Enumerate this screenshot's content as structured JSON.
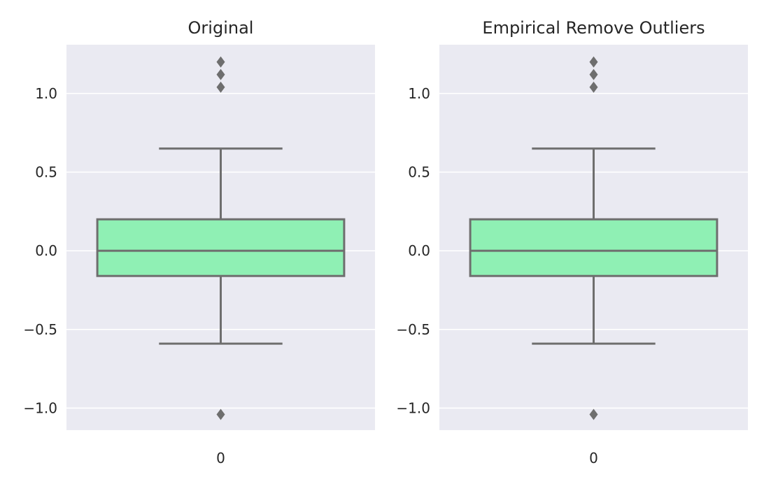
{
  "chart_data": [
    {
      "type": "box",
      "title": "Original",
      "categories": [
        "0"
      ],
      "ylim": [
        -1.14,
        1.31
      ],
      "yticks": [
        1.0,
        0.5,
        0.0,
        -0.5,
        -1.0
      ],
      "ytick_labels": [
        "1.0",
        "0.5",
        "0.0",
        "−0.5",
        "−1.0"
      ],
      "grid": true,
      "box": {
        "q1": -0.16,
        "median": 0.0,
        "q3": 0.2,
        "whisker_low": -0.59,
        "whisker_high": 0.65,
        "outliers": [
          1.2,
          1.12,
          1.04,
          -1.04
        ]
      },
      "colors": {
        "box_fill": "#8ff0b4",
        "line": "#6e6e6e",
        "background": "#eaeaf2",
        "grid": "#ffffff"
      }
    },
    {
      "type": "box",
      "title": "Empirical Remove Outliers",
      "categories": [
        "0"
      ],
      "ylim": [
        -1.14,
        1.31
      ],
      "yticks": [
        1.0,
        0.5,
        0.0,
        -0.5,
        -1.0
      ],
      "ytick_labels": [
        "1.0",
        "0.5",
        "0.0",
        "−0.5",
        "−1.0"
      ],
      "grid": true,
      "box": {
        "q1": -0.16,
        "median": 0.0,
        "q3": 0.2,
        "whisker_low": -0.59,
        "whisker_high": 0.65,
        "outliers": [
          1.2,
          1.12,
          1.04,
          -1.04
        ]
      },
      "colors": {
        "box_fill": "#8ff0b4",
        "line": "#6e6e6e",
        "background": "#eaeaf2",
        "grid": "#ffffff"
      }
    }
  ]
}
